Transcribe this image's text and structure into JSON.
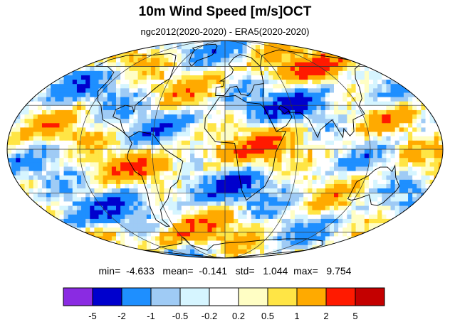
{
  "title": "10m Wind Speed [m/s]OCT",
  "subtitle": "ngc2012(2020-2020) - ERA5(2020-2020)",
  "stats": {
    "min_label": "min=",
    "min": "-4.633",
    "mean_label": "mean=",
    "mean": "-0.141",
    "std_label": "std=",
    "std": "1.044",
    "max_label": "max=",
    "max": "9.754"
  },
  "map": {
    "projection": "mollweide",
    "land_outline_color": "#000000",
    "graticule": true
  },
  "colorbar": {
    "colors": [
      "#8a2be2",
      "#0000cd",
      "#1e8fff",
      "#9fcbf5",
      "#d6f5ff",
      "#ffffff",
      "#fffec4",
      "#ffe545",
      "#ffaa00",
      "#ff1a00",
      "#c40000"
    ],
    "tick_labels": [
      "-5",
      "-2",
      "-1",
      "-0.5",
      "-0.2",
      "0.2",
      "0.5",
      "1",
      "2",
      "5"
    ]
  }
}
